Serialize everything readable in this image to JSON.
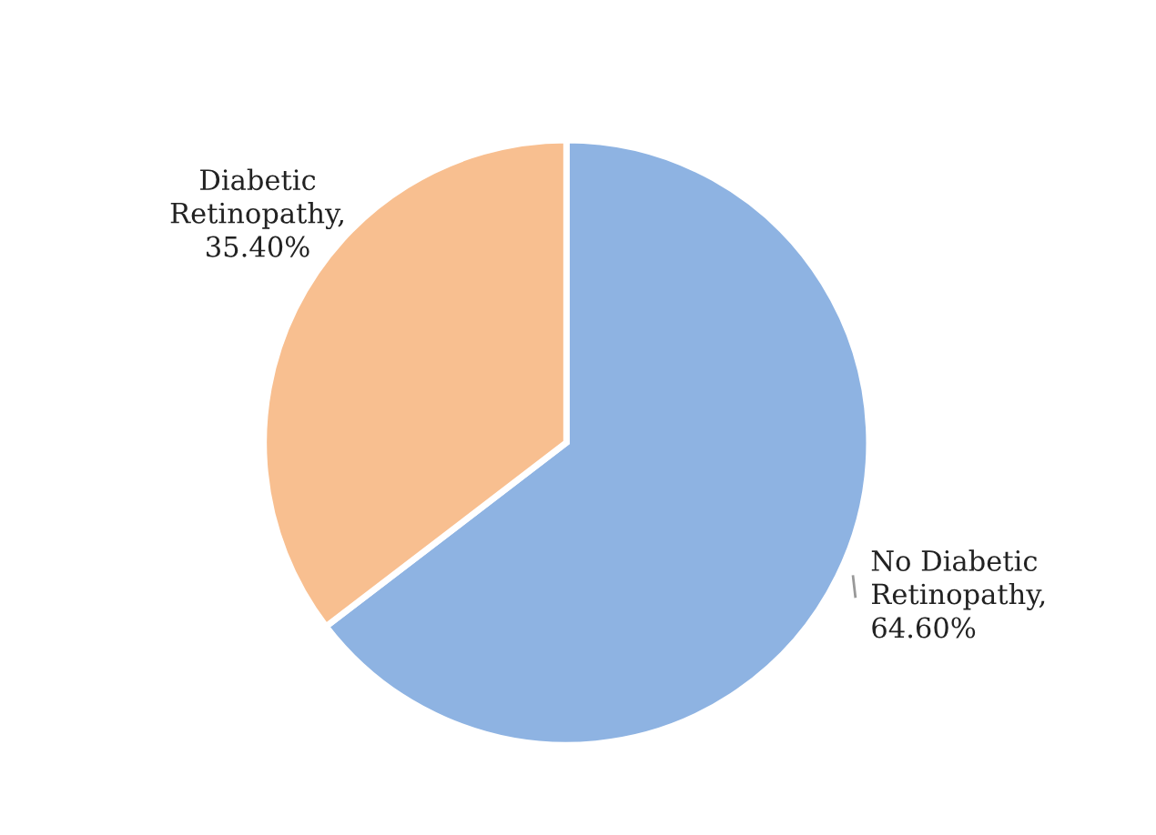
{
  "chart_data": {
    "type": "pie",
    "categories": [
      "No Diabetic Retinopathy",
      "Diabetic Retinopathy"
    ],
    "values": [
      64.6,
      35.4
    ],
    "value_labels": [
      ", 64.60%",
      ", 35.40%"
    ],
    "colors": [
      "#8eb3e2",
      "#f8bf90"
    ],
    "legend": false
  }
}
